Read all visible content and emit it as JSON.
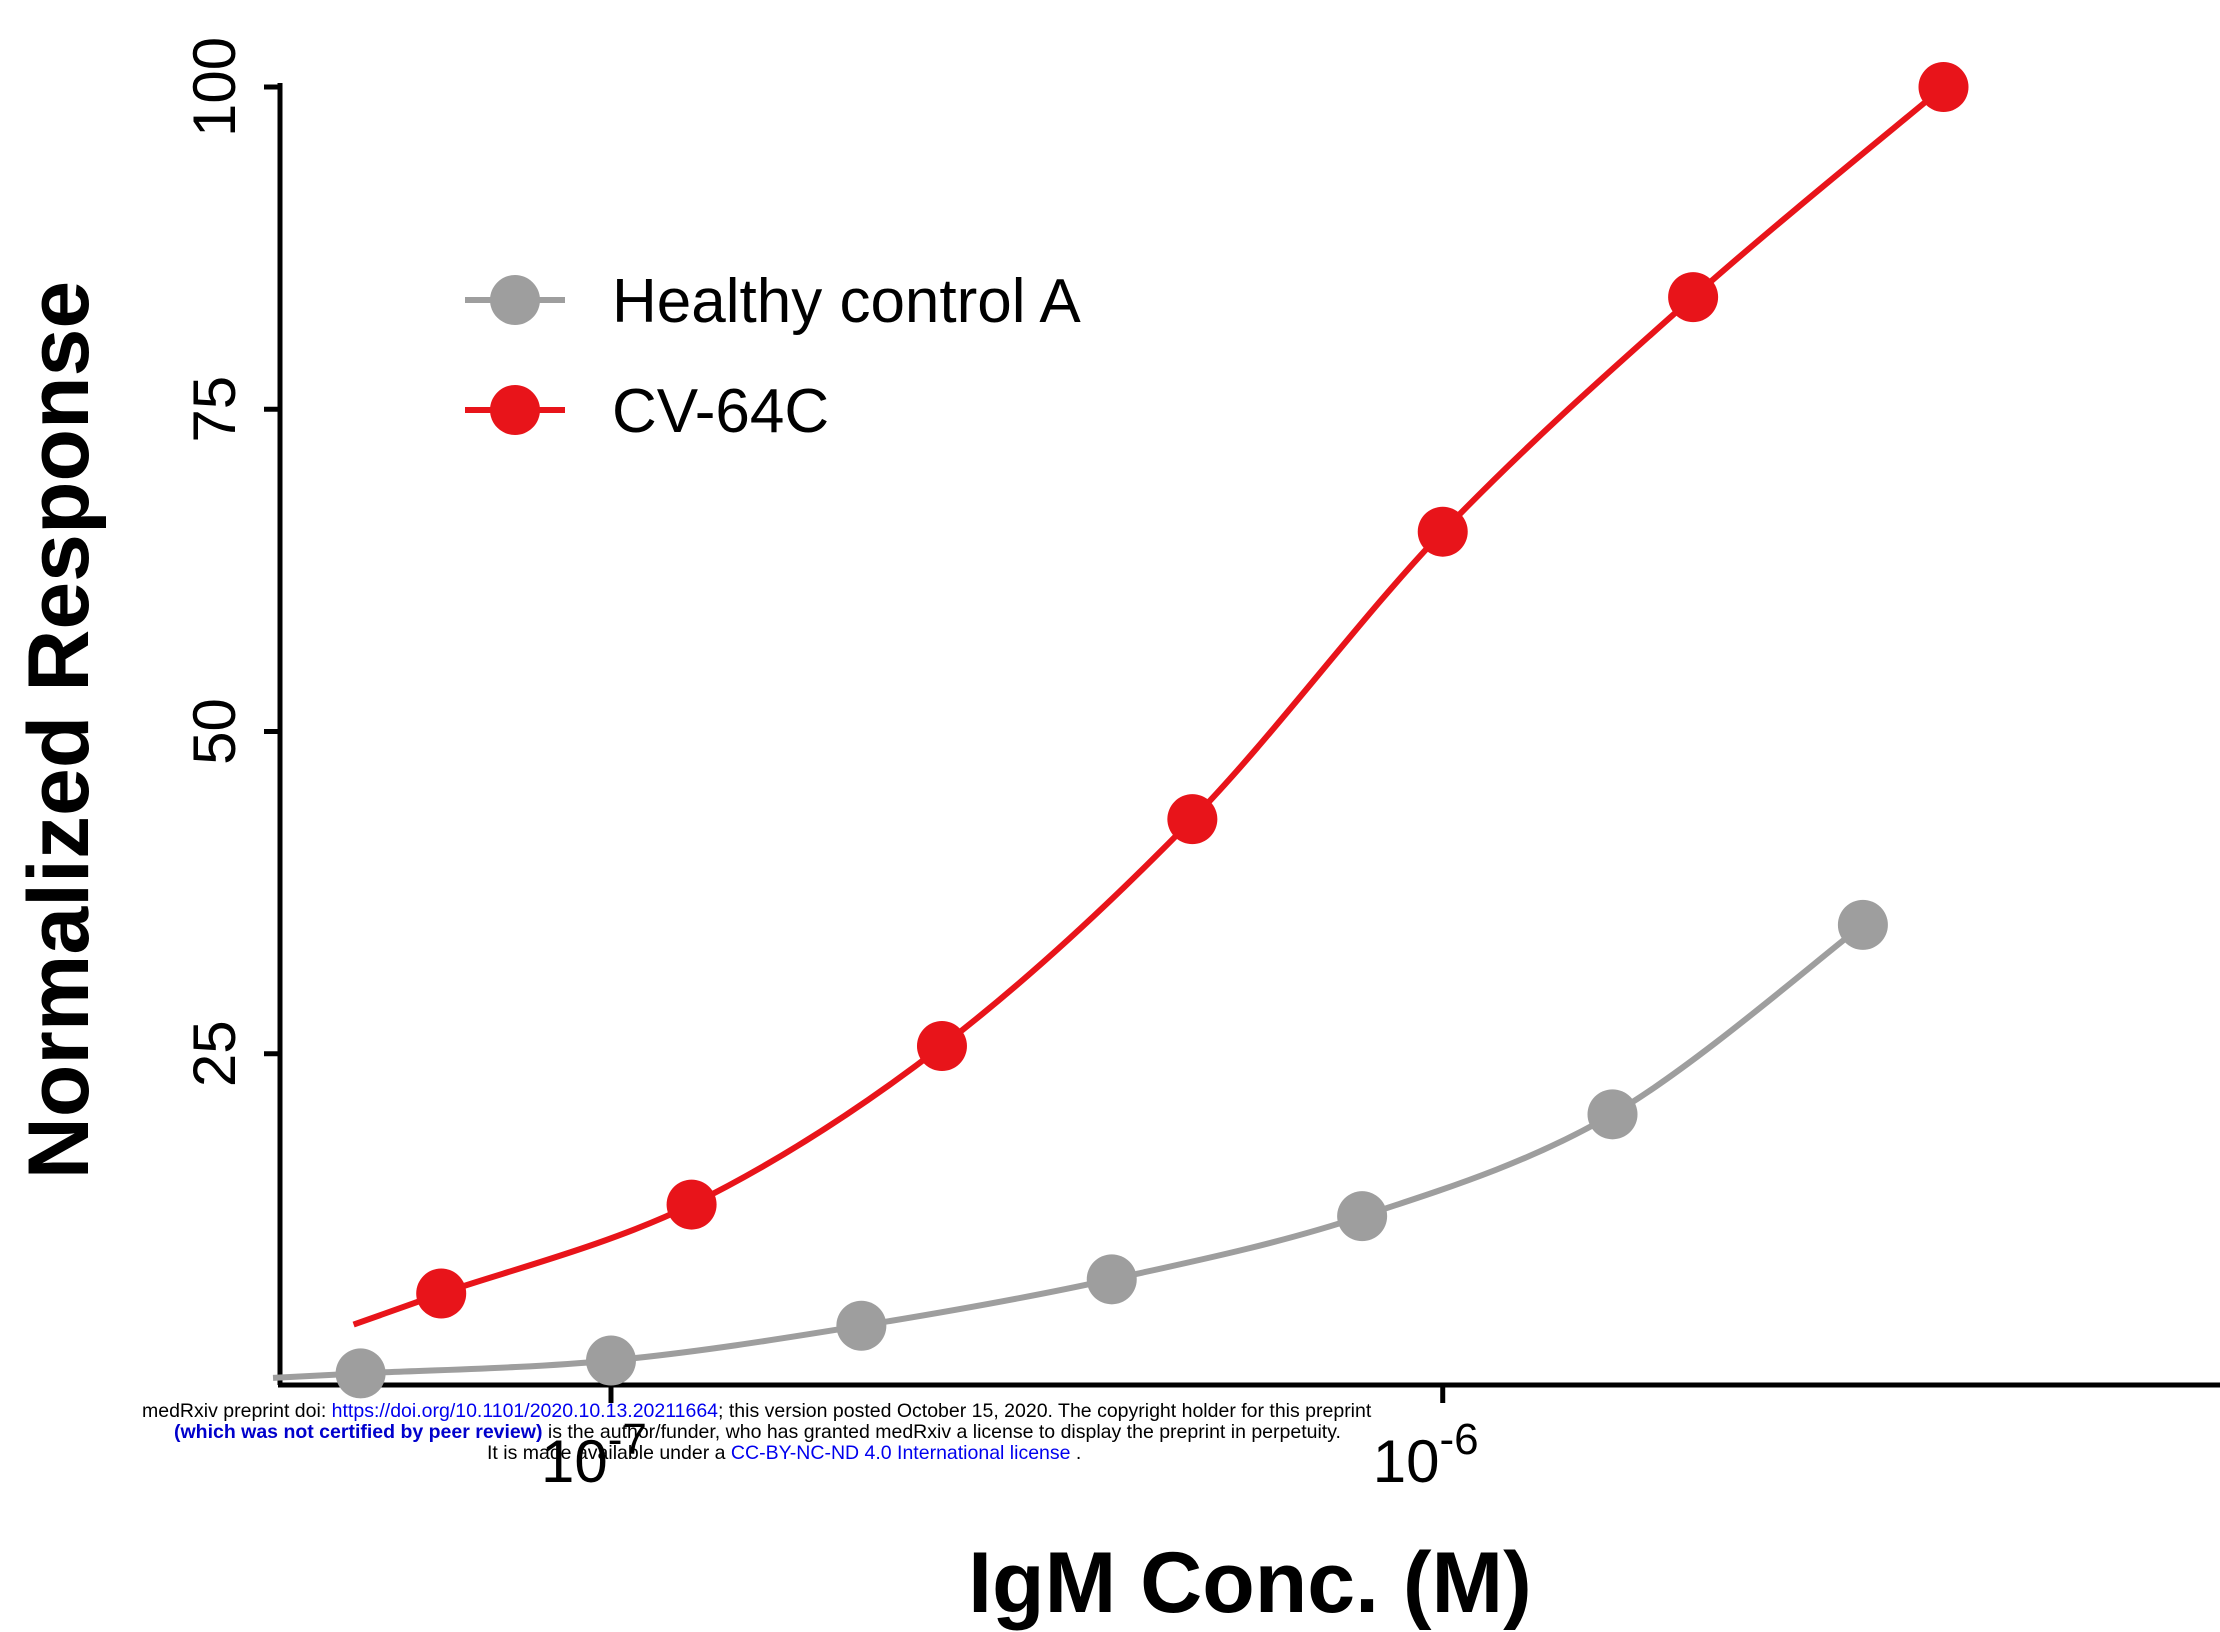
{
  "chart_data": {
    "type": "line",
    "xscale": "log",
    "xlim": [
      4e-08,
      8.6e-06
    ],
    "ylim": [
      0,
      100
    ],
    "yticks": [
      25,
      50,
      75,
      100
    ],
    "xticks": [
      {
        "value": 1e-07,
        "base": "10",
        "exp": "-7"
      },
      {
        "value": 1e-06,
        "base": "10",
        "exp": "-6"
      }
    ],
    "xlabel": "IgM Conc. (M)",
    "ylabel": "Normalized Response",
    "legend_position": "top-left",
    "series": [
      {
        "name": "Healthy control A",
        "color": "#9e9e9e",
        "x": [
          5e-08,
          1e-07,
          2e-07,
          4e-07,
          8e-07,
          1.6e-06,
          3.2e-06
        ],
        "y": [
          0.2,
          1.2,
          3.9,
          7.5,
          12.4,
          20.3,
          35.0
        ]
      },
      {
        "name": "CV-64C",
        "color": "#e8141a",
        "x": [
          6.25e-08,
          1.25e-07,
          2.5e-07,
          5e-07,
          1e-06,
          2e-06,
          4e-06
        ],
        "y": [
          6.4,
          13.3,
          25.6,
          43.2,
          65.5,
          83.7,
          100.0
        ]
      }
    ]
  },
  "watermark": {
    "line1_prefix": "medRxiv preprint doi: ",
    "line1_link": "https://doi.org/10.1101/2020.10.13.20211664",
    "line1_suffix": "; this version posted October 15, 2020. The copyright holder for this preprint",
    "line2_bold": "(which was not certified by peer review)",
    "line2_rest": " is the author/funder, who has granted medRxiv a license to display the preprint in perpetuity.",
    "line3_prefix": "It is made available under a ",
    "line3_link": "CC-BY-NC-ND 4.0 International license",
    "line3_suffix": " ."
  }
}
